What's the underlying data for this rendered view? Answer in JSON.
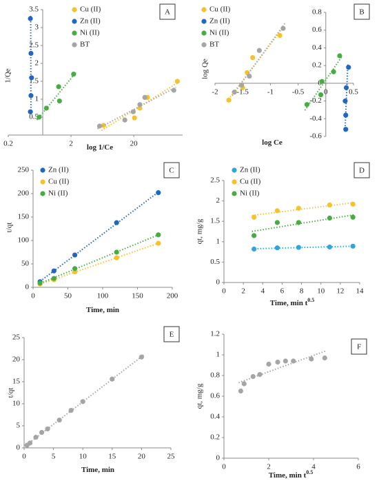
{
  "chart_data": [
    {
      "type": "scatter",
      "panel_label": "A",
      "xlabel": "log 1/Ce",
      "ylabel": "1/Qe",
      "log_x": true,
      "xlim": [
        0.2,
        120
      ],
      "xticks": [
        0.2,
        2,
        20
      ],
      "ylim": [
        0,
        3.5
      ],
      "yticks": [
        0.5,
        1,
        1.5,
        2,
        2.5,
        3,
        3.5
      ],
      "trendline": true,
      "series": [
        {
          "name": "Cu (II)",
          "color": "#f7c12a",
          "x": [
            6.6,
            20.5,
            25,
            33,
            99
          ],
          "values": [
            0.27,
            0.48,
            0.75,
            1.05,
            1.5
          ]
        },
        {
          "name": "Zn (II)",
          "color": "#2167c0",
          "x": [
            0.45,
            0.46,
            0.47,
            0.46,
            0.45
          ],
          "values": [
            3.25,
            2.28,
            1.6,
            1.1,
            0.65
          ]
        },
        {
          "name": "Ni (II)",
          "color": "#47ad42",
          "x": [
            0.62,
            0.81,
            1.27,
            1.31,
            2.2
          ],
          "values": [
            0.5,
            0.75,
            1.35,
            0.95,
            1.7
          ]
        },
        {
          "name": "BT",
          "color": "#a5a5a5",
          "x": [
            5.7,
            14.4,
            19.6,
            25,
            30,
            87
          ],
          "values": [
            0.25,
            0.42,
            0.65,
            0.85,
            1.05,
            1.25
          ]
        }
      ]
    },
    {
      "type": "scatter",
      "panel_label": "B",
      "xlabel": "log Ce",
      "ylabel": "log Qe",
      "axes_at_zero": true,
      "xlim": [
        -2,
        0.5
      ],
      "xticks": [
        -2,
        -1.5,
        -1,
        -0.5,
        0,
        0.5
      ],
      "ylim": [
        -0.6,
        0.8
      ],
      "yticks": [
        -0.6,
        -0.4,
        -0.2,
        0,
        0.2,
        0.4,
        0.6,
        0.8
      ],
      "trendline": true,
      "series": [
        {
          "name": "Cu (II)",
          "color": "#f7c12a",
          "x": [
            -1.75,
            -1.5,
            -1.42,
            -1.32,
            -0.83
          ],
          "values": [
            -0.19,
            -0.05,
            0.12,
            0.29,
            0.54
          ]
        },
        {
          "name": "Zn (II)",
          "color": "#2167c0",
          "x": [
            0.41,
            0.37,
            0.35,
            0.36,
            0.36
          ],
          "values": [
            0.18,
            -0.05,
            -0.2,
            -0.36,
            -0.52
          ]
        },
        {
          "name": "Ni (II)",
          "color": "#47ad42",
          "x": [
            -0.34,
            -0.09,
            -0.07,
            0.14,
            0.25
          ],
          "values": [
            -0.24,
            -0.13,
            0.02,
            0.13,
            0.31
          ]
        },
        {
          "name": "BT",
          "color": "#a5a5a5",
          "x": [
            -1.65,
            -1.52,
            -1.38,
            -1.2,
            -0.77
          ],
          "values": [
            -0.1,
            -0.02,
            0.08,
            0.37,
            0.62
          ]
        }
      ]
    },
    {
      "type": "scatter",
      "panel_label": "C",
      "xlabel": "Time, min",
      "ylabel": "t/qt",
      "xlim": [
        0,
        200
      ],
      "xticks": [
        0,
        50,
        100,
        150,
        200
      ],
      "ylim": [
        0,
        250
      ],
      "yticks": [
        0,
        50,
        100,
        150,
        200,
        250
      ],
      "trendline": true,
      "series": [
        {
          "name": "Zn (II)",
          "color": "#2167c0",
          "x": [
            10,
            30,
            60,
            120,
            180
          ],
          "values": [
            12,
            35,
            69,
            138,
            202
          ]
        },
        {
          "name": "Cu (II)",
          "color": "#f7c12a",
          "x": [
            10,
            30,
            60,
            120,
            180
          ],
          "values": [
            7,
            16,
            33,
            63,
            94
          ]
        },
        {
          "name": "Ni (II)",
          "color": "#47ad42",
          "x": [
            10,
            30,
            60,
            120,
            180
          ],
          "values": [
            9,
            19,
            40,
            75,
            112
          ]
        }
      ]
    },
    {
      "type": "scatter",
      "panel_label": "D",
      "xlabel": "Time, min t",
      "xlabel_superscript": "0.5",
      "ylabel": "qt, mg/g",
      "xlim": [
        0,
        14
      ],
      "xticks": [
        0,
        2,
        4,
        6,
        8,
        10,
        12,
        14
      ],
      "ylim": [
        0,
        2.5
      ],
      "yticks": [
        0,
        0.5,
        1,
        1.5,
        2,
        2.5
      ],
      "trendline": true,
      "series": [
        {
          "name": "Zn (II)",
          "color": "#2ea6dc",
          "x": [
            3.1,
            5.5,
            7.7,
            10.9,
            13.3
          ],
          "values": [
            0.82,
            0.85,
            0.86,
            0.87,
            0.89
          ]
        },
        {
          "name": "Cu (II)",
          "color": "#f7c12a",
          "x": [
            3.1,
            5.5,
            7.7,
            10.9,
            13.3
          ],
          "values": [
            1.6,
            1.76,
            1.82,
            1.9,
            1.92
          ]
        },
        {
          "name": "Ni (II)",
          "color": "#47ad42",
          "x": [
            3.1,
            5.5,
            7.7,
            10.9,
            13.3
          ],
          "values": [
            1.15,
            1.47,
            1.47,
            1.58,
            1.6
          ]
        }
      ]
    },
    {
      "type": "scatter",
      "panel_label": "E",
      "xlabel": "Time, min",
      "ylabel": "t/qt",
      "xlim": [
        0,
        25
      ],
      "xticks": [
        0,
        5,
        10,
        15,
        20,
        25
      ],
      "ylim": [
        0,
        25
      ],
      "yticks": [
        0,
        5,
        10,
        15,
        20,
        25
      ],
      "trendline": true,
      "series": [
        {
          "color": "#a5a5a5",
          "x": [
            0.5,
            1,
            2,
            3,
            4,
            6,
            8,
            10,
            15,
            20
          ],
          "values": [
            0.6,
            1.1,
            2.4,
            3.5,
            4.3,
            6.3,
            8.5,
            10.5,
            15.6,
            20.6
          ]
        }
      ]
    },
    {
      "type": "scatter",
      "panel_label": "F",
      "xlabel": "Time, min t",
      "xlabel_superscript": "0.5",
      "ylabel": "qt, mg/g",
      "xlim": [
        0,
        6
      ],
      "xticks": [
        0,
        2,
        4,
        6
      ],
      "ylim": [
        0,
        1.2
      ],
      "yticks": [
        0,
        0.2,
        0.4,
        0.6,
        0.8,
        1,
        1.2
      ],
      "trendline": true,
      "series": [
        {
          "color": "#a5a5a5",
          "x": [
            0.75,
            0.9,
            1.3,
            1.6,
            2,
            2.4,
            2.75,
            3.1,
            3.9,
            4.5
          ],
          "values": [
            0.65,
            0.72,
            0.79,
            0.81,
            0.91,
            0.93,
            0.94,
            0.94,
            0.96,
            0.97
          ]
        }
      ]
    }
  ]
}
